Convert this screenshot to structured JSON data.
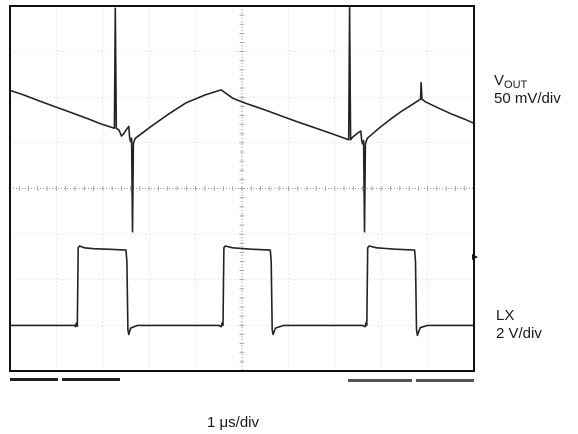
{
  "chart_data": {
    "type": "line",
    "title": "",
    "xlabel": "1 μs/div",
    "x_divisions": 10,
    "y_divisions": 8,
    "grid": true,
    "traces": [
      {
        "name": "VOUT",
        "label_main": "V",
        "label_sub": "OUT",
        "scale": "50 mV/div",
        "color": "#222222",
        "unit_x": "div",
        "unit_y": "div",
        "points": [
          [
            0.0,
            2.15
          ],
          [
            0.3,
            2.05
          ],
          [
            0.6,
            1.93
          ],
          [
            0.95,
            1.8
          ],
          [
            1.3,
            1.67
          ],
          [
            1.65,
            1.54
          ],
          [
            1.95,
            1.42
          ],
          [
            2.25,
            1.32
          ],
          [
            2.27,
            3.95
          ],
          [
            2.29,
            1.32
          ],
          [
            2.35,
            1.28
          ],
          [
            2.4,
            1.15
          ],
          [
            2.45,
            1.2
          ],
          [
            2.5,
            1.28
          ],
          [
            2.56,
            1.36
          ],
          [
            2.58,
            1.1
          ],
          [
            2.6,
            1.03
          ],
          [
            2.62,
            1.1
          ],
          [
            2.64,
            -0.95
          ],
          [
            2.66,
            1.0
          ],
          [
            2.7,
            1.1
          ],
          [
            3.0,
            1.33
          ],
          [
            3.4,
            1.62
          ],
          [
            3.8,
            1.88
          ],
          [
            4.2,
            2.05
          ],
          [
            4.55,
            2.16
          ],
          [
            4.8,
            1.98
          ],
          [
            5.1,
            1.86
          ],
          [
            5.5,
            1.72
          ],
          [
            5.9,
            1.57
          ],
          [
            6.25,
            1.44
          ],
          [
            6.6,
            1.32
          ],
          [
            7.0,
            1.18
          ],
          [
            7.3,
            1.07
          ],
          [
            7.32,
            3.96
          ],
          [
            7.34,
            1.07
          ],
          [
            7.38,
            1.12
          ],
          [
            7.44,
            1.17
          ],
          [
            7.5,
            1.22
          ],
          [
            7.56,
            1.26
          ],
          [
            7.58,
            1.05
          ],
          [
            7.6,
            0.98
          ],
          [
            7.62,
            1.05
          ],
          [
            7.64,
            -0.95
          ],
          [
            7.66,
            0.98
          ],
          [
            7.7,
            1.1
          ],
          [
            7.95,
            1.32
          ],
          [
            8.2,
            1.52
          ],
          [
            8.45,
            1.7
          ],
          [
            8.7,
            1.86
          ],
          [
            8.85,
            1.96
          ],
          [
            8.86,
            2.32
          ],
          [
            8.88,
            1.96
          ],
          [
            8.95,
            1.9
          ],
          [
            9.2,
            1.78
          ],
          [
            9.5,
            1.64
          ],
          [
            9.8,
            1.52
          ],
          [
            10.0,
            1.43
          ]
        ]
      },
      {
        "name": "LX",
        "label_main": "LX",
        "label_sub": "",
        "scale": "2 V/div",
        "color": "#222222",
        "unit_x": "div",
        "unit_y": "div",
        "points": [
          [
            0.0,
            -3.0
          ],
          [
            1.4,
            -3.0
          ],
          [
            1.41,
            -3.03
          ],
          [
            1.43,
            -2.95
          ],
          [
            1.45,
            -3.02
          ],
          [
            1.47,
            -1.3
          ],
          [
            1.5,
            -1.26
          ],
          [
            1.6,
            -1.3
          ],
          [
            1.8,
            -1.32
          ],
          [
            2.1,
            -1.33
          ],
          [
            2.5,
            -1.35
          ],
          [
            2.52,
            -1.6
          ],
          [
            2.54,
            -3.1
          ],
          [
            2.56,
            -3.2
          ],
          [
            2.6,
            -3.06
          ],
          [
            2.75,
            -3.0
          ],
          [
            4.5,
            -3.0
          ],
          [
            4.55,
            -3.03
          ],
          [
            4.57,
            -2.95
          ],
          [
            4.59,
            -3.0
          ],
          [
            4.61,
            -1.3
          ],
          [
            4.64,
            -1.26
          ],
          [
            4.8,
            -1.3
          ],
          [
            5.2,
            -1.33
          ],
          [
            5.61,
            -1.35
          ],
          [
            5.63,
            -1.6
          ],
          [
            5.65,
            -3.1
          ],
          [
            5.67,
            -3.2
          ],
          [
            5.72,
            -3.06
          ],
          [
            5.9,
            -3.0
          ],
          [
            7.6,
            -3.0
          ],
          [
            7.65,
            -3.03
          ],
          [
            7.67,
            -2.95
          ],
          [
            7.69,
            -3.0
          ],
          [
            7.71,
            -1.3
          ],
          [
            7.74,
            -1.26
          ],
          [
            7.9,
            -1.3
          ],
          [
            8.3,
            -1.33
          ],
          [
            8.72,
            -1.35
          ],
          [
            8.74,
            -1.6
          ],
          [
            8.76,
            -3.1
          ],
          [
            8.78,
            -3.22
          ],
          [
            8.84,
            -3.05
          ],
          [
            9.0,
            -3.0
          ],
          [
            10.0,
            -3.0
          ]
        ]
      }
    ],
    "ground_marker_y": -1.5
  },
  "labels": {
    "vout_main": "V",
    "vout_sub": "OUT",
    "vout_scale": "50 mV/div",
    "lx_main": "LX",
    "lx_scale": "2 V/div",
    "timebase": "1 μs/div"
  }
}
